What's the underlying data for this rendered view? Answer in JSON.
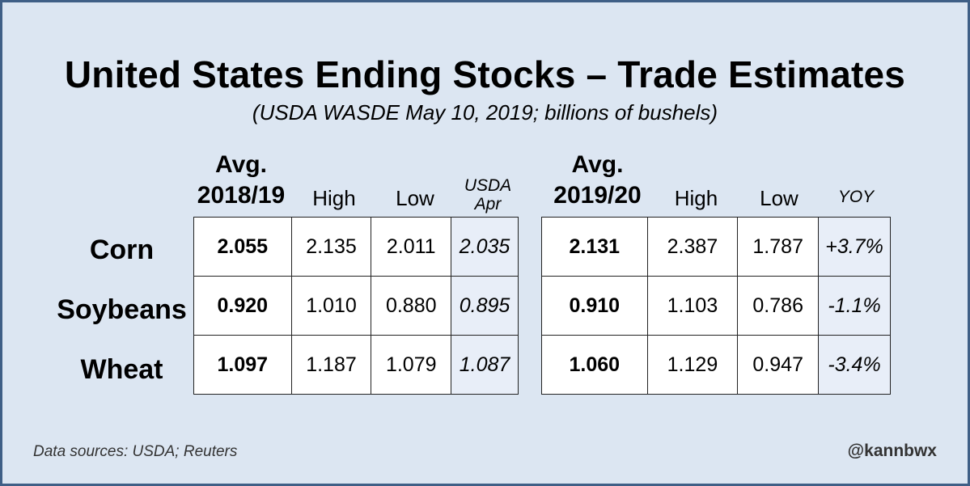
{
  "title": "United States Ending Stocks – Trade Estimates",
  "subtitle": "(USDA WASDE May 10, 2019; billions of bushels)",
  "chart_data": {
    "type": "table",
    "title": "United States Ending Stocks – Trade Estimates",
    "subtitle": "(USDA WASDE May 10, 2019; billions of bushels)",
    "rows": [
      "Corn",
      "Soybeans",
      "Wheat"
    ],
    "tables": [
      {
        "headers": {
          "avg_line1": "Avg.",
          "avg_line2": "2018/19",
          "high": "High",
          "low": "Low",
          "extra_line1": "USDA",
          "extra_line2": "Apr"
        },
        "values": [
          [
            "2.055",
            "2.135",
            "2.011",
            "2.035"
          ],
          [
            "0.920",
            "1.010",
            "0.880",
            "0.895"
          ],
          [
            "1.097",
            "1.187",
            "1.079",
            "1.087"
          ]
        ]
      },
      {
        "headers": {
          "avg_line1": "Avg.",
          "avg_line2": "2019/20",
          "high": "High",
          "low": "Low",
          "extra_line1": "YOY"
        },
        "values": [
          [
            "2.131",
            "2.387",
            "1.787",
            "+3.7%"
          ],
          [
            "0.910",
            "1.103",
            "0.786",
            "-1.1%"
          ],
          [
            "1.060",
            "1.129",
            "0.947",
            "-3.4%"
          ]
        ]
      }
    ]
  },
  "footer": {
    "source": "Data sources: USDA; Reuters",
    "handle": "@kannbwx"
  },
  "colors": {
    "background": "#dce6f2",
    "border": "#3f5f86",
    "shaded_cell": "#e8eef8"
  }
}
